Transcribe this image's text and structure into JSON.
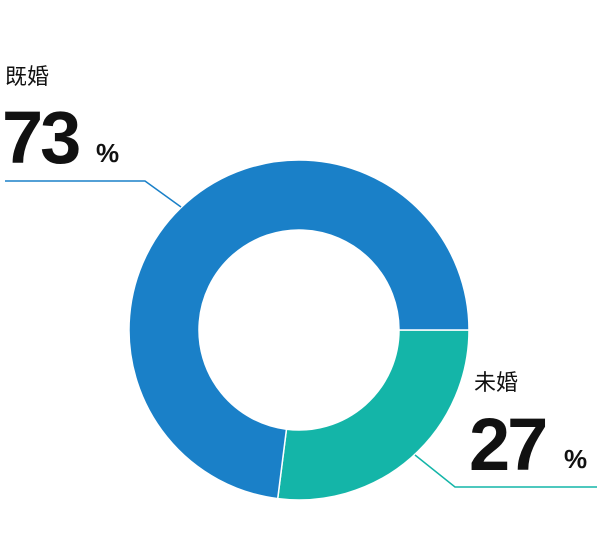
{
  "chart_data": {
    "type": "donut",
    "categories": [
      "既婚",
      "未婚"
    ],
    "values": [
      73,
      27
    ],
    "unit": "%",
    "colors": [
      "#1a80c8",
      "#14b5a8"
    ]
  }
}
